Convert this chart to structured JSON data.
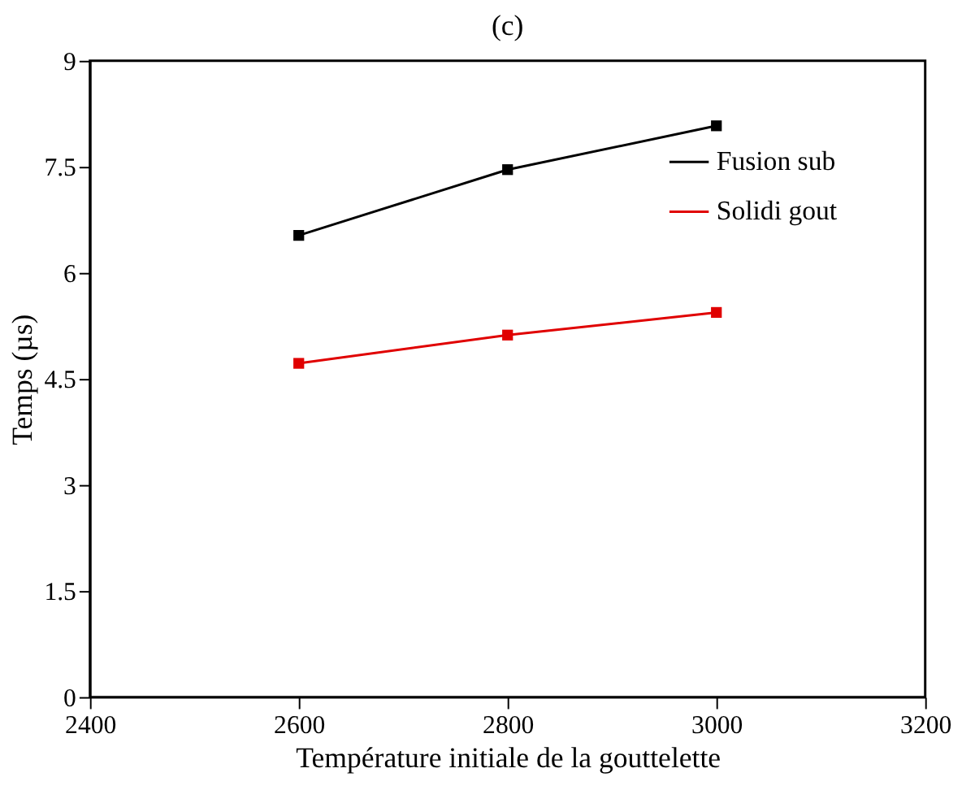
{
  "chart_data": {
    "type": "line",
    "title": "(c)",
    "xlabel": "Température initiale de la gouttelette",
    "ylabel": "Temps (µs)",
    "x": [
      2600,
      2800,
      3000
    ],
    "series": [
      {
        "name": "Fusion sub",
        "color": "#000000",
        "values": [
          6.53,
          7.46,
          8.08
        ]
      },
      {
        "name": "Solidi gout",
        "color": "#e00000",
        "values": [
          4.72,
          5.12,
          5.44
        ]
      }
    ],
    "xlim": [
      2400,
      3200
    ],
    "xticks": [
      2400,
      2600,
      2800,
      3000,
      3200
    ],
    "ylim": [
      0,
      9
    ],
    "yticks": [
      0,
      1.5,
      3,
      4.5,
      6,
      7.5,
      9
    ],
    "grid": false,
    "legend": "top right",
    "marker": "square",
    "line_style": "solid"
  }
}
